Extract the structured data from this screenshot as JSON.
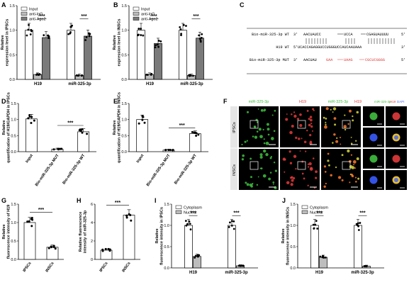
{
  "figure": {
    "panels": {
      "A": {
        "letter": "A"
      },
      "B": {
        "letter": "B"
      },
      "C": {
        "letter": "C"
      },
      "D": {
        "letter": "D"
      },
      "E": {
        "letter": "E"
      },
      "F": {
        "letter": "F"
      },
      "G": {
        "letter": "G"
      },
      "H": {
        "letter": "H"
      },
      "I": {
        "letter": "I"
      },
      "J": {
        "letter": "J"
      }
    },
    "seq": {
      "wt_label": "Bio-miR-325-3p WT",
      "wt_prime3": "3'",
      "wt_seq": "AACUAUCC",
      "wt_seq_b": "UCCA",
      "wt_seq_c": "CGAGUAUUUU",
      "wt_prime5": "5'",
      "h19_label": "H19 WT",
      "h19_prime5": "5'",
      "h19_seq": "UCACCAGAGGUCCUGGGUCCAUCAAUAAA",
      "h19_prime3": "3'",
      "mut_label": "Bio-miR-325-3p MUT",
      "mut_prime3": "3'",
      "mut_seq_a": "AACUAU",
      "mut_seq_b": "GAA",
      "mut_seq_c": "UAAG",
      "mut_seq_d": "CGCUCGGGG",
      "mut_prime5": "5'"
    },
    "fluor": {
      "header_green": "miR-325-3p",
      "header_red": "H19",
      "header_merge_a": "miR-325-3p",
      "header_merge_b": "H19",
      "header_detail_a": "miR-325-3p",
      "header_detail_b": "H19",
      "header_detail_c": "DAPI",
      "row1": "IPSCs",
      "row2": "INSCs"
    }
  },
  "chart_data": [
    {
      "panel": "A",
      "type": "bar",
      "ylabel": "Relative expression level in IPSCs",
      "categories": [
        "H19",
        "miR-325-3p"
      ],
      "ylim": [
        0,
        1.5
      ],
      "yticks": [
        "0.0",
        "0.5",
        "1.0",
        "1.5"
      ],
      "series": [
        {
          "name": "Input",
          "values": [
            1.0,
            1.0
          ]
        },
        {
          "name": "anti-IgG",
          "values": [
            0.1,
            0.08
          ]
        },
        {
          "name": "anti-Ago2",
          "values": [
            0.85,
            0.88
          ]
        }
      ],
      "significance": [
        "***",
        "***"
      ]
    },
    {
      "panel": "B",
      "type": "bar",
      "ylabel": "Relative expression level in INSCs",
      "categories": [
        "H19",
        "miR-325-3p"
      ],
      "ylim": [
        0,
        1.5
      ],
      "yticks": [
        "0.0",
        "0.5",
        "1.0",
        "1.5"
      ],
      "series": [
        {
          "name": "Input",
          "values": [
            1.0,
            1.0
          ]
        },
        {
          "name": "anti-IgG",
          "values": [
            0.1,
            0.08
          ]
        },
        {
          "name": "anti-Ago2",
          "values": [
            0.73,
            0.84
          ]
        }
      ],
      "significance": [
        "***",
        "***"
      ]
    },
    {
      "panel": "D",
      "type": "bar",
      "ylabel": "Relative quantification of H19/GAPDH in IPSCs",
      "categories": [
        "Input",
        "Bio-miR-325-3p MUT",
        "Bio-miR-325-3p WT"
      ],
      "ylim": [
        0,
        1.5
      ],
      "yticks": [
        "0.0",
        "0.5",
        "1.0",
        "1.5"
      ],
      "values": [
        1.02,
        0.08,
        0.62
      ],
      "significance": "***"
    },
    {
      "panel": "E",
      "type": "bar",
      "ylabel": "Relative quantification of H19/GAPDH in INSCs",
      "categories": [
        "Input",
        "Bio-miR-325-3p MUT",
        "Bio-miR-325-3p WT"
      ],
      "ylim": [
        0,
        1.5
      ],
      "yticks": [
        "0.0",
        "0.5",
        "1.0",
        "1.5"
      ],
      "values": [
        1.0,
        0.05,
        0.56
      ],
      "significance": "***"
    },
    {
      "panel": "G",
      "type": "bar",
      "ylabel": "Relative fluorescence intensity of H19",
      "categories": [
        "IPSCs",
        "INSCs"
      ],
      "ylim": [
        0,
        1.5
      ],
      "yticks": [
        "0.0",
        "0.5",
        "1.0",
        "1.5"
      ],
      "values": [
        1.0,
        0.33
      ],
      "significance": "***"
    },
    {
      "panel": "H",
      "type": "bar",
      "ylabel": "Relative fluorescence intensity of miR-325-3p",
      "categories": [
        "IPSCs",
        "INSCs"
      ],
      "ylim": [
        0,
        6
      ],
      "yticks": [
        "0",
        "2",
        "4",
        "6"
      ],
      "values": [
        1.0,
        4.8
      ],
      "significance": "***"
    },
    {
      "panel": "I",
      "type": "bar",
      "ylabel": "Relative fluorescence intensity in IPSCs",
      "categories": [
        "H19",
        "miR-325-3p"
      ],
      "ylim": [
        0,
        1.5
      ],
      "yticks": [
        "0.0",
        "0.5",
        "1.0",
        "1.5"
      ],
      "series": [
        {
          "name": "Cytoplasm",
          "values": [
            1.0,
            1.0
          ]
        },
        {
          "name": "Nuclear",
          "values": [
            0.27,
            0.05
          ]
        }
      ],
      "significance": [
        "***",
        "***"
      ]
    },
    {
      "panel": "J",
      "type": "bar",
      "ylabel": "Relative fluorescence intensity in INSCs",
      "categories": [
        "H19",
        "miR-325-3p"
      ],
      "ylim": [
        0,
        1.5
      ],
      "yticks": [
        "0.0",
        "0.5",
        "1.0",
        "1.5"
      ],
      "series": [
        {
          "name": "Cytoplasm",
          "values": [
            1.0,
            1.0
          ]
        },
        {
          "name": "Nuclear",
          "values": [
            0.25,
            0.04
          ]
        }
      ],
      "significance": [
        "***",
        "***"
      ]
    }
  ],
  "colors": {
    "white": "#ffffff",
    "gray": "#a9a9a9",
    "dark": "#7a7a7a",
    "black": "#000000",
    "green": "#3fbf3f",
    "red": "#e23b3b"
  }
}
